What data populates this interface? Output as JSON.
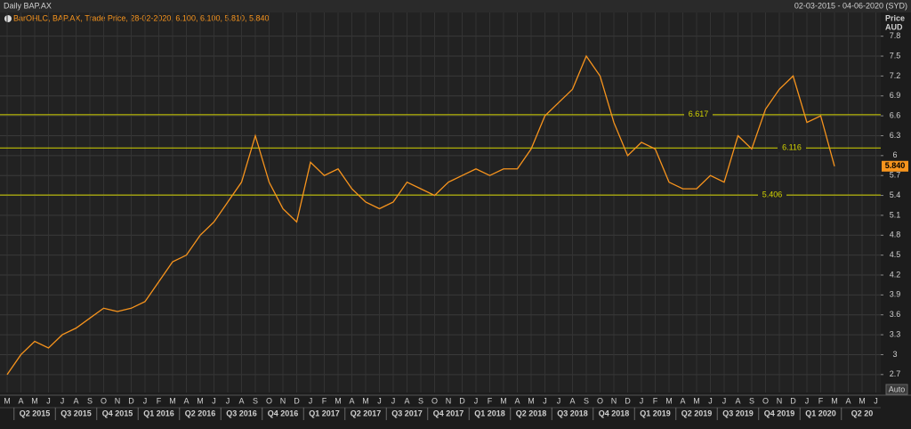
{
  "chart_data": {
    "type": "line",
    "title": "Daily BAP.AX",
    "date_range": "02-03-2015 - 04-06-2020 (SYD)",
    "legend_text": "BarOHLC, BAP.AX, Trade Price, 28-02-2020, 6.100, 6.100, 5.810, 5.840",
    "y_axis_label": "Price",
    "y_axis_unit": "AUD",
    "auto_button": "Auto",
    "last_price_label": "5.840",
    "categories": [
      "M",
      "A",
      "M",
      "J",
      "J",
      "A",
      "S",
      "O",
      "N",
      "D",
      "J",
      "F",
      "M",
      "A",
      "M",
      "J",
      "J",
      "A",
      "S",
      "O",
      "N",
      "D",
      "J",
      "F",
      "M",
      "A",
      "M",
      "J",
      "J",
      "A",
      "S",
      "O",
      "N",
      "D",
      "J",
      "F",
      "M",
      "A",
      "M",
      "J",
      "J",
      "A",
      "S",
      "O",
      "N",
      "D",
      "J",
      "F",
      "M",
      "A",
      "M",
      "J",
      "J",
      "A",
      "S",
      "O",
      "N",
      "D",
      "J",
      "F",
      "M",
      "A",
      "M",
      "J"
    ],
    "quarters": [
      "Q2 2015",
      "Q3 2015",
      "Q4 2015",
      "Q1 2016",
      "Q2 2016",
      "Q3 2016",
      "Q4 2016",
      "Q1 2017",
      "Q2 2017",
      "Q3 2017",
      "Q4 2017",
      "Q1 2018",
      "Q2 2018",
      "Q3 2018",
      "Q4 2018",
      "Q1 2019",
      "Q2 2019",
      "Q3 2019",
      "Q4 2019",
      "Q1 2020",
      "Q2 20"
    ],
    "series": [
      {
        "name": "BAP.AX",
        "color": "#f7941d",
        "values": [
          2.7,
          3.0,
          3.2,
          3.1,
          3.3,
          3.4,
          3.55,
          3.7,
          3.65,
          3.7,
          3.8,
          4.1,
          4.4,
          4.5,
          4.8,
          5.0,
          5.3,
          5.6,
          6.3,
          5.6,
          5.2,
          5.0,
          5.9,
          5.7,
          5.8,
          5.5,
          5.3,
          5.2,
          5.3,
          5.6,
          5.5,
          5.4,
          5.6,
          5.7,
          5.8,
          5.7,
          5.8,
          5.8,
          6.1,
          6.6,
          6.8,
          7.0,
          7.5,
          7.2,
          6.5,
          6.0,
          6.2,
          6.1,
          5.6,
          5.5,
          5.5,
          5.7,
          5.6,
          6.3,
          6.1,
          6.7,
          7.0,
          7.2,
          6.5,
          6.6,
          5.84,
          null,
          null,
          null
        ]
      }
    ],
    "levels": [
      6.617,
      6.116,
      5.406
    ],
    "level_color": "#d4d400",
    "ylim": [
      2.55,
      7.97
    ],
    "yticks": [
      2.7,
      3,
      3.3,
      3.6,
      3.9,
      4.2,
      4.5,
      4.8,
      5.1,
      5.4,
      5.7,
      6,
      6.3,
      6.6,
      6.9,
      7.2,
      7.5,
      7.8
    ],
    "grid": true
  }
}
